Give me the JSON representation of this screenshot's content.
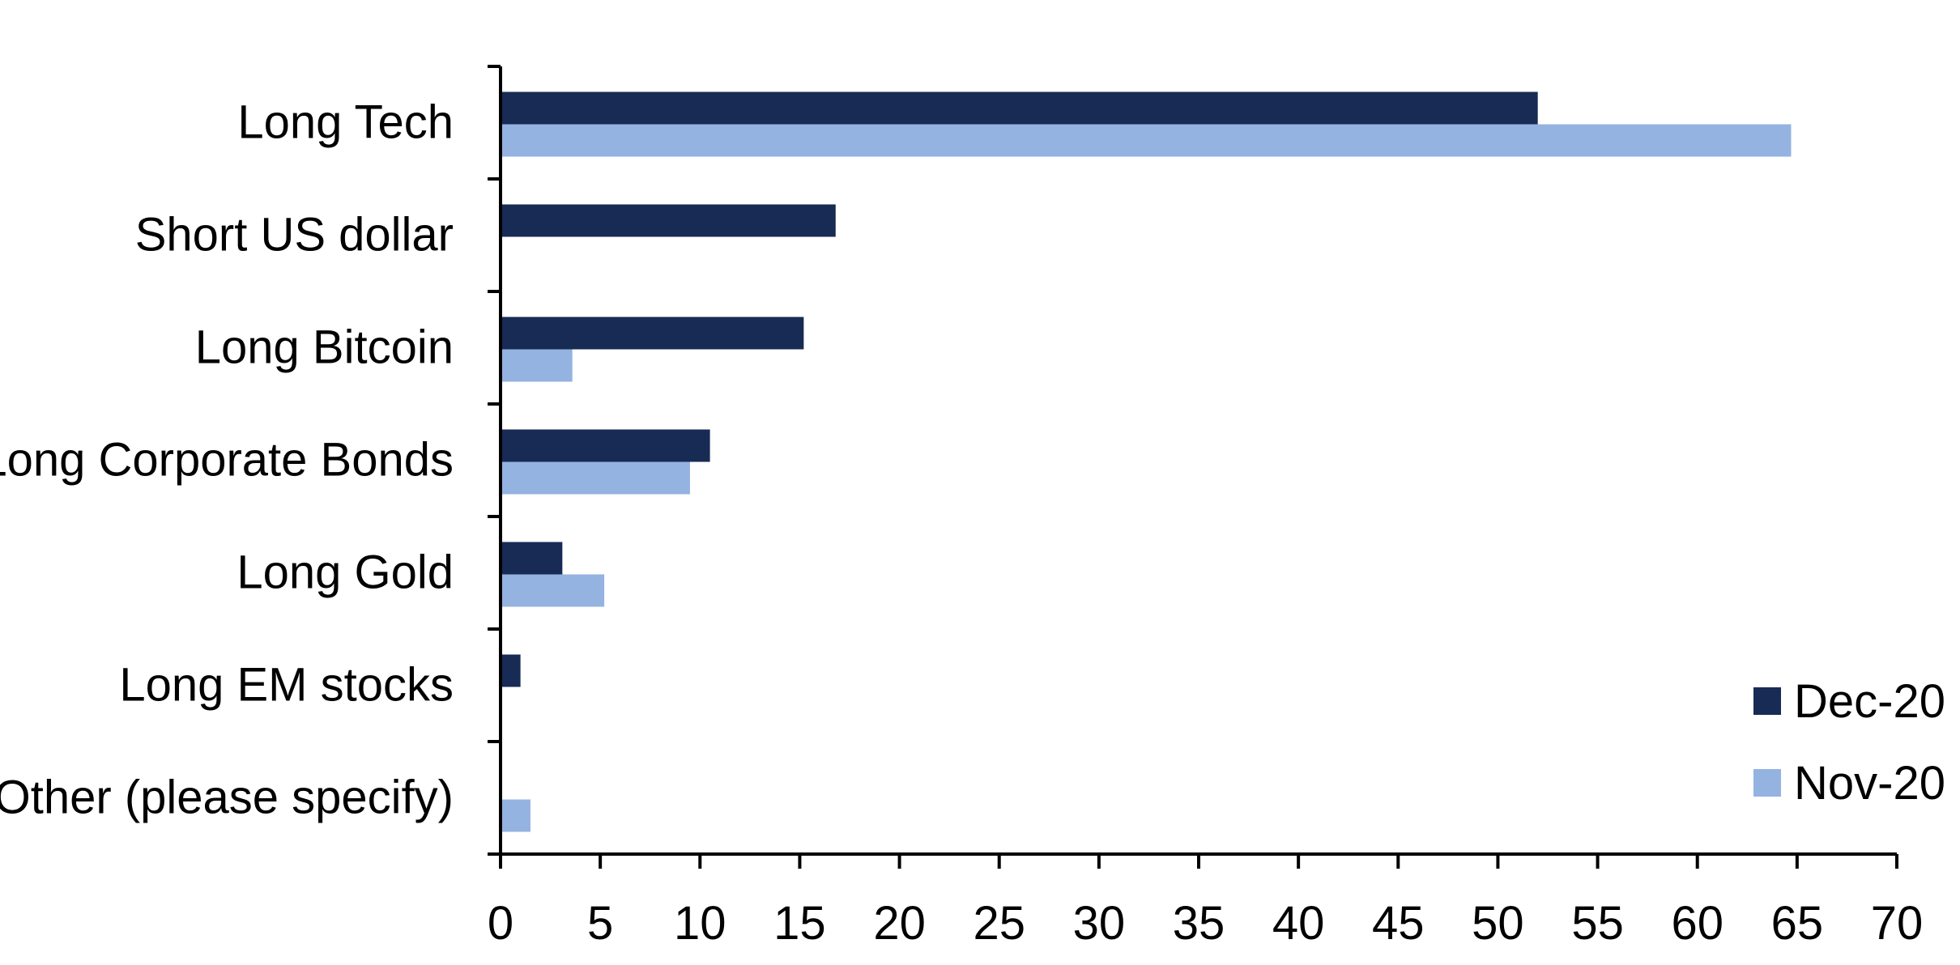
{
  "chart_data": {
    "type": "bar",
    "orientation": "horizontal",
    "title": "",
    "xlabel": "",
    "ylabel": "",
    "categories": [
      "Long Tech",
      "Short US dollar",
      "Long Bitcoin",
      "Long Corporate Bonds",
      "Long Gold",
      "Long EM stocks",
      "Other (please specify)"
    ],
    "series": [
      {
        "name": "Dec-20",
        "color": "#172B54",
        "values": [
          52,
          16.8,
          15.2,
          10.5,
          3.1,
          1.0,
          0
        ]
      },
      {
        "name": "Nov-20",
        "color": "#95B3E0",
        "values": [
          64.7,
          0,
          3.6,
          9.5,
          5.2,
          0,
          1.5
        ]
      }
    ],
    "xlim": [
      0,
      70
    ],
    "xticks": [
      "0",
      "5",
      "10",
      "15",
      "20",
      "25",
      "30",
      "35",
      "40",
      "45",
      "50",
      "55",
      "60",
      "65",
      "70"
    ],
    "grid": false,
    "legend_position": "bottom-right"
  }
}
